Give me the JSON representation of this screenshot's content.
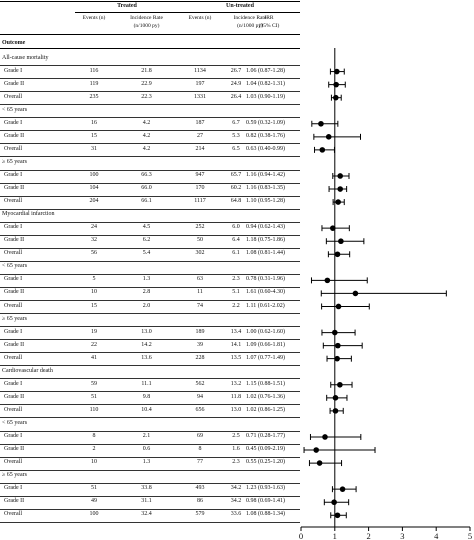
{
  "table": {
    "group_headers": [
      "Treated",
      "Un-treated"
    ],
    "col_events": "Events (n)",
    "col_rate": [
      "Incidence Rate",
      "(n/1000 py)"
    ],
    "col_irr": [
      "IRR",
      "(95% CI)"
    ],
    "outcome_header": "Outcome"
  },
  "rows": [
    {
      "type": "section",
      "label": "All-cause mortality"
    },
    {
      "type": "data",
      "label": "Grade I",
      "tn": "116",
      "tr": "21.8",
      "un": "1134",
      "ur": "26.7",
      "irr": "1.06 (0.87-1.28)"
    },
    {
      "type": "data",
      "label": "Grade II",
      "tn": "119",
      "tr": "22.9",
      "un": "197",
      "ur": "24.9",
      "irr": "1.04 (0.82-1.31)"
    },
    {
      "type": "data",
      "label": "Overall",
      "tn": "235",
      "tr": "22.3",
      "un": "1331",
      "ur": "26.4",
      "irr": "1.03 (0.90-1.19)"
    },
    {
      "type": "sub",
      "label": "< 65 years"
    },
    {
      "type": "data",
      "label": "Grade I",
      "tn": "16",
      "tr": "4.2",
      "un": "187",
      "ur": "6.7",
      "irr": "0.59 (0.32-1.09)"
    },
    {
      "type": "data",
      "label": "Grade II",
      "tn": "15",
      "tr": "4.2",
      "un": "27",
      "ur": "5.3",
      "irr": "0.82 (0.38-1.76)"
    },
    {
      "type": "data",
      "label": "Overall",
      "tn": "31",
      "tr": "4.2",
      "un": "214",
      "ur": "6.5",
      "irr": "0.63 (0.40-0.99)"
    },
    {
      "type": "sub",
      "label": "≥ 65 years"
    },
    {
      "type": "data",
      "label": "Grade I",
      "tn": "100",
      "tr": "66.3",
      "un": "947",
      "ur": "65.7",
      "irr": "1.16 (0.94-1.42)"
    },
    {
      "type": "data",
      "label": "Grade II",
      "tn": "104",
      "tr": "66.0",
      "un": "170",
      "ur": "60.2",
      "irr": "1.16 (0.83-1.35)"
    },
    {
      "type": "data",
      "label": "Overall",
      "tn": "204",
      "tr": "66.1",
      "un": "1117",
      "ur": "64.8",
      "irr": "1.10 (0.95-1.28)"
    },
    {
      "type": "section",
      "label": "Myocardial infarction"
    },
    {
      "type": "data",
      "label": "Grade I",
      "tn": "24",
      "tr": "4.5",
      "un": "252",
      "ur": "6.0",
      "irr": "0.94 (0.62-1.43)"
    },
    {
      "type": "data",
      "label": "Grade II",
      "tn": "32",
      "tr": "6.2",
      "un": "50",
      "ur": "6.4",
      "irr": "1.18 (0.75-1.86)"
    },
    {
      "type": "data",
      "label": "Overall",
      "tn": "56",
      "tr": "5.4",
      "un": "302",
      "ur": "6.1",
      "irr": "1.08 (0.81-1.44)"
    },
    {
      "type": "sub",
      "label": "< 65 years"
    },
    {
      "type": "data",
      "label": "Grade I",
      "tn": "5",
      "tr": "1.3",
      "un": "63",
      "ur": "2.3",
      "irr": "0.78 (0.31-1.96)"
    },
    {
      "type": "data",
      "label": "Grade II",
      "tn": "10",
      "tr": "2.8",
      "un": "11",
      "ur": "5.1",
      "irr": "1.61 (0.60-4.30)"
    },
    {
      "type": "data",
      "label": "Overall",
      "tn": "15",
      "tr": "2.0",
      "un": "74",
      "ur": "2.2",
      "irr": "1.11 (0.61-2.02)"
    },
    {
      "type": "sub",
      "label": "≥ 65 years"
    },
    {
      "type": "data",
      "label": "Grade I",
      "tn": "19",
      "tr": "13.0",
      "un": "189",
      "ur": "13.4",
      "irr": "1.00 (0.62-1.60)"
    },
    {
      "type": "data",
      "label": "Grade II",
      "tn": "22",
      "tr": "14.2",
      "un": "39",
      "ur": "14.1",
      "irr": "1.09 (0.66-1.81)"
    },
    {
      "type": "data",
      "label": "Overall",
      "tn": "41",
      "tr": "13.6",
      "un": "228",
      "ur": "13.5",
      "irr": "1.07 (0.77-1.49)"
    },
    {
      "type": "section",
      "label": "Cardiovascular death"
    },
    {
      "type": "data",
      "label": "Grade I",
      "tn": "59",
      "tr": "11.1",
      "un": "562",
      "ur": "13.2",
      "irr": "1.15 (0.88-1.51)"
    },
    {
      "type": "data",
      "label": "Grade II",
      "tn": "51",
      "tr": "9.8",
      "un": "94",
      "ur": "11.8",
      "irr": "1.02 (0.76-1.36)"
    },
    {
      "type": "data",
      "label": "Overall",
      "tn": "110",
      "tr": "10.4",
      "un": "656",
      "ur": "13.0",
      "irr": "1.02 (0.86-1.25)"
    },
    {
      "type": "sub",
      "label": "< 65 years"
    },
    {
      "type": "data",
      "label": "Grade I",
      "tn": "8",
      "tr": "2.1",
      "un": "69",
      "ur": "2.5",
      "irr": "0.71 (0.28-1.77)"
    },
    {
      "type": "data",
      "label": "Grade II",
      "tn": "2",
      "tr": "0.6",
      "un": "8",
      "ur": "1.6",
      "irr": "0.45 (0.09-2.19)"
    },
    {
      "type": "data",
      "label": "Overall",
      "tn": "10",
      "tr": "1.3",
      "un": "77",
      "ur": "2.3",
      "irr": "0.55 (0.25-1.20)"
    },
    {
      "type": "sub",
      "label": "≥ 65 years"
    },
    {
      "type": "data",
      "label": "Grade I",
      "tn": "51",
      "tr": "33.8",
      "un": "493",
      "ur": "34.2",
      "irr": "1.23 (0.93-1.63)"
    },
    {
      "type": "data",
      "label": "Grade II",
      "tn": "49",
      "tr": "31.1",
      "un": "86",
      "ur": "34.2",
      "irr": "0.98 (0.69-1.41)"
    },
    {
      "type": "data",
      "label": "Overall",
      "tn": "100",
      "tr": "32.4",
      "un": "579",
      "ur": "33.6",
      "irr": "1.08 (0.88-1.34)"
    }
  ],
  "chart_data": {
    "type": "forest",
    "xlim": [
      0,
      5
    ],
    "xticks": [
      "0",
      "1",
      "2",
      "3",
      "4",
      "5"
    ],
    "reference_line": 1,
    "points": [
      {
        "irr": 1.06,
        "lo": 0.87,
        "hi": 1.28
      },
      {
        "irr": 1.04,
        "lo": 0.82,
        "hi": 1.31
      },
      {
        "irr": 1.03,
        "lo": 0.9,
        "hi": 1.19
      },
      {
        "irr": 0.59,
        "lo": 0.32,
        "hi": 1.09
      },
      {
        "irr": 0.82,
        "lo": 0.38,
        "hi": 1.76
      },
      {
        "irr": 0.63,
        "lo": 0.4,
        "hi": 0.99
      },
      {
        "irr": 1.16,
        "lo": 0.94,
        "hi": 1.42
      },
      {
        "irr": 1.16,
        "lo": 0.83,
        "hi": 1.35
      },
      {
        "irr": 1.1,
        "lo": 0.95,
        "hi": 1.28
      },
      {
        "irr": 0.94,
        "lo": 0.62,
        "hi": 1.43
      },
      {
        "irr": 1.18,
        "lo": 0.75,
        "hi": 1.86
      },
      {
        "irr": 1.08,
        "lo": 0.81,
        "hi": 1.44
      },
      {
        "irr": 0.78,
        "lo": 0.31,
        "hi": 1.96
      },
      {
        "irr": 1.61,
        "lo": 0.6,
        "hi": 4.3
      },
      {
        "irr": 1.11,
        "lo": 0.61,
        "hi": 2.02
      },
      {
        "irr": 1.0,
        "lo": 0.62,
        "hi": 1.6
      },
      {
        "irr": 1.09,
        "lo": 0.66,
        "hi": 1.81
      },
      {
        "irr": 1.07,
        "lo": 0.77,
        "hi": 1.49
      },
      {
        "irr": 1.15,
        "lo": 0.88,
        "hi": 1.51
      },
      {
        "irr": 1.02,
        "lo": 0.76,
        "hi": 1.36
      },
      {
        "irr": 1.02,
        "lo": 0.86,
        "hi": 1.25
      },
      {
        "irr": 0.71,
        "lo": 0.28,
        "hi": 1.77
      },
      {
        "irr": 0.45,
        "lo": 0.09,
        "hi": 2.19
      },
      {
        "irr": 0.55,
        "lo": 0.25,
        "hi": 1.2
      },
      {
        "irr": 1.23,
        "lo": 0.93,
        "hi": 1.63
      },
      {
        "irr": 0.98,
        "lo": 0.69,
        "hi": 1.41
      },
      {
        "irr": 1.08,
        "lo": 0.88,
        "hi": 1.34
      }
    ]
  }
}
